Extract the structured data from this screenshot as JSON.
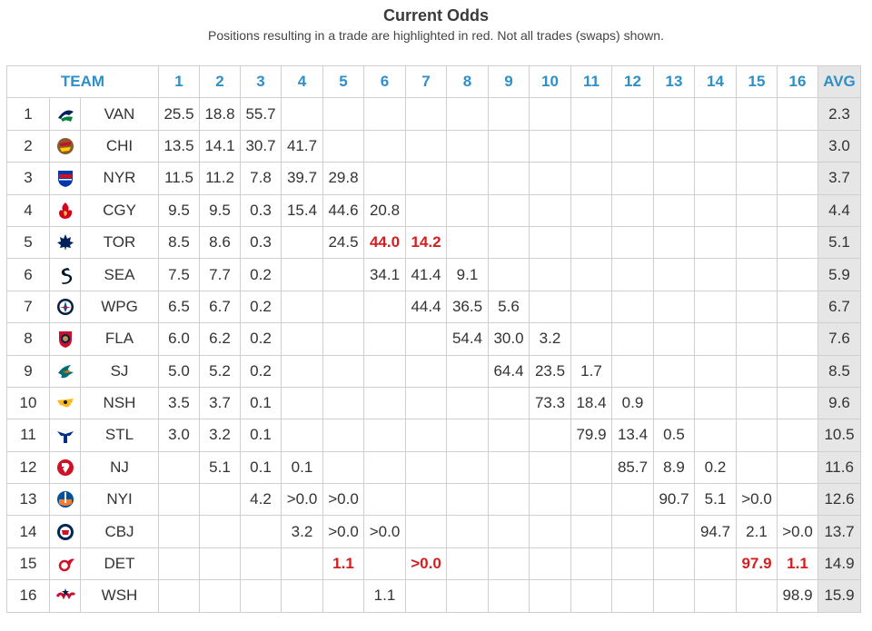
{
  "title": "Current Odds",
  "subtitle": "Positions resulting in a trade are highlighted in red. Not all trades (swaps) shown.",
  "columns": {
    "team": "TEAM",
    "positions": [
      "1",
      "2",
      "3",
      "4",
      "5",
      "6",
      "7",
      "8",
      "9",
      "10",
      "11",
      "12",
      "13",
      "14",
      "15",
      "16"
    ],
    "avg": "AVG"
  },
  "rows": [
    {
      "rank": "1",
      "team": "VAN",
      "logo": "canucks-logo",
      "color": "#00205b",
      "cells": [
        "25.5",
        "18.8",
        "55.7",
        "",
        "",
        "",
        "",
        "",
        "",
        "",
        "",
        "",
        "",
        "",
        "",
        ""
      ],
      "avg": "2.3"
    },
    {
      "rank": "2",
      "team": "CHI",
      "logo": "blackhawks-logo",
      "color": "#c8102e",
      "cells": [
        "13.5",
        "14.1",
        "30.7",
        "41.7",
        "",
        "",
        "",
        "",
        "",
        "",
        "",
        "",
        "",
        "",
        "",
        ""
      ],
      "avg": "3.0"
    },
    {
      "rank": "3",
      "team": "NYR",
      "logo": "rangers-logo",
      "color": "#0038a8",
      "cells": [
        "11.5",
        "11.2",
        "7.8",
        "39.7",
        "29.8",
        "",
        "",
        "",
        "",
        "",
        "",
        "",
        "",
        "",
        "",
        ""
      ],
      "avg": "3.7"
    },
    {
      "rank": "4",
      "team": "CGY",
      "logo": "flames-logo",
      "color": "#d2001c",
      "cells": [
        "9.5",
        "9.5",
        "0.3",
        "15.4",
        "44.6",
        "20.8",
        "",
        "",
        "",
        "",
        "",
        "",
        "",
        "",
        "",
        ""
      ],
      "avg": "4.4"
    },
    {
      "rank": "5",
      "team": "TOR",
      "logo": "maple-leafs-logo",
      "color": "#00205b",
      "cells": [
        "8.5",
        "8.6",
        "0.3",
        "",
        "24.5",
        "44.0",
        "14.2",
        "",
        "",
        "",
        "",
        "",
        "",
        "",
        "",
        ""
      ],
      "avg": "5.1"
    },
    {
      "rank": "6",
      "team": "SEA",
      "logo": "kraken-logo",
      "color": "#001628",
      "cells": [
        "7.5",
        "7.7",
        "0.2",
        "",
        "",
        "34.1",
        "41.4",
        "9.1",
        "",
        "",
        "",
        "",
        "",
        "",
        "",
        ""
      ],
      "avg": "5.9"
    },
    {
      "rank": "7",
      "team": "WPG",
      "logo": "jets-logo",
      "color": "#041e42",
      "cells": [
        "6.5",
        "6.7",
        "0.2",
        "",
        "",
        "",
        "44.4",
        "36.5",
        "5.6",
        "",
        "",
        "",
        "",
        "",
        "",
        ""
      ],
      "avg": "6.7"
    },
    {
      "rank": "8",
      "team": "FLA",
      "logo": "panthers-logo",
      "color": "#c8102e",
      "cells": [
        "6.0",
        "6.2",
        "0.2",
        "",
        "",
        "",
        "",
        "54.4",
        "30.0",
        "3.2",
        "",
        "",
        "",
        "",
        "",
        ""
      ],
      "avg": "7.6"
    },
    {
      "rank": "9",
      "team": "SJ",
      "logo": "sharks-logo",
      "color": "#006d75",
      "cells": [
        "5.0",
        "5.2",
        "0.2",
        "",
        "",
        "",
        "",
        "",
        "64.4",
        "23.5",
        "1.7",
        "",
        "",
        "",
        "",
        ""
      ],
      "avg": "8.5"
    },
    {
      "rank": "10",
      "team": "NSH",
      "logo": "predators-logo",
      "color": "#ffb81c",
      "cells": [
        "3.5",
        "3.7",
        "0.1",
        "",
        "",
        "",
        "",
        "",
        "",
        "73.3",
        "18.4",
        "0.9",
        "",
        "",
        "",
        ""
      ],
      "avg": "9.6"
    },
    {
      "rank": "11",
      "team": "STL",
      "logo": "blues-logo",
      "color": "#002f87",
      "cells": [
        "3.0",
        "3.2",
        "0.1",
        "",
        "",
        "",
        "",
        "",
        "",
        "",
        "79.9",
        "13.4",
        "0.5",
        "",
        "",
        ""
      ],
      "avg": "10.5"
    },
    {
      "rank": "12",
      "team": "NJ",
      "logo": "devils-logo",
      "color": "#ce1126",
      "cells": [
        "",
        "5.1",
        "0.1",
        "0.1",
        "",
        "",
        "",
        "",
        "",
        "",
        "",
        "85.7",
        "8.9",
        "0.2",
        "",
        ""
      ],
      "avg": "11.6"
    },
    {
      "rank": "13",
      "team": "NYI",
      "logo": "islanders-logo",
      "color": "#00539b",
      "cells": [
        "",
        "",
        "4.2",
        ">0.0",
        ">0.0",
        "",
        "",
        "",
        "",
        "",
        "",
        "",
        "90.7",
        "5.1",
        ">0.0",
        ""
      ],
      "avg": "12.6"
    },
    {
      "rank": "14",
      "team": "CBJ",
      "logo": "blue-jackets-logo",
      "color": "#002654",
      "cells": [
        "",
        "",
        "",
        "3.2",
        ">0.0",
        ">0.0",
        "",
        "",
        "",
        "",
        "",
        "",
        "",
        "94.7",
        "2.1",
        ">0.0"
      ],
      "avg": "13.7"
    },
    {
      "rank": "15",
      "team": "DET",
      "logo": "red-wings-logo",
      "color": "#ce1126",
      "cells": [
        "",
        "",
        "",
        "",
        "1.1",
        "",
        ">0.0",
        "",
        "",
        "",
        "",
        "",
        "",
        "",
        "97.9",
        "1.1"
      ],
      "avg": "14.9"
    },
    {
      "rank": "16",
      "team": "WSH",
      "logo": "capitals-logo",
      "color": "#c8102e",
      "cells": [
        "",
        "",
        "",
        "",
        "",
        "1.1",
        "",
        "",
        "",
        "",
        "",
        "",
        "",
        "",
        "",
        "98.9"
      ],
      "avg": "15.9"
    }
  ],
  "highlighted": [
    {
      "row": 5,
      "col": 6
    },
    {
      "row": 5,
      "col": 7
    },
    {
      "row": 15,
      "col": 5
    },
    {
      "row": 15,
      "col": 7
    },
    {
      "row": 15,
      "col": 15
    },
    {
      "row": 15,
      "col": 16
    }
  ],
  "highlight_color": "#d61e1e",
  "header_color": "#2f8fc8",
  "avg_bg": "#e6e6e6"
}
